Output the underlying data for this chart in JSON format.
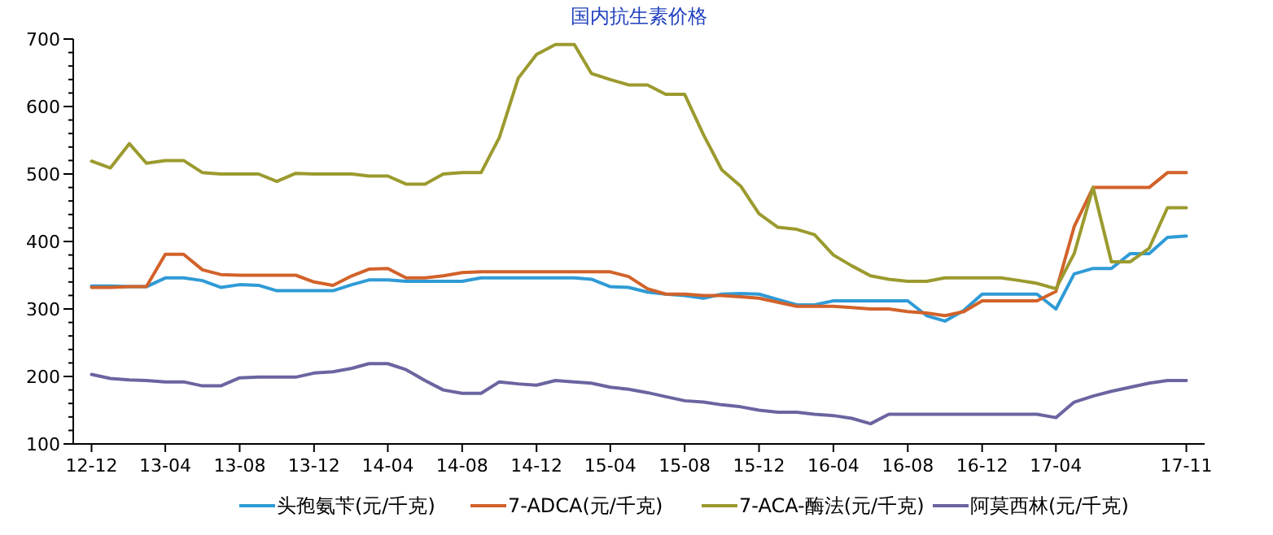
{
  "chart_data": {
    "type": "line",
    "title": "国内抗生素价格",
    "x": [
      "2012-12",
      "2013-01",
      "2013-02",
      "2013-03",
      "2013-04",
      "2013-05",
      "2013-06",
      "2013-07",
      "2013-08",
      "2013-09",
      "2013-10",
      "2013-11",
      "2013-12",
      "2014-01",
      "2014-02",
      "2014-03",
      "2014-04",
      "2014-05",
      "2014-06",
      "2014-07",
      "2014-08",
      "2014-09",
      "2014-10",
      "2014-11",
      "2014-12",
      "2015-01",
      "2015-02",
      "2015-03",
      "2015-04",
      "2015-05",
      "2015-06",
      "2015-07",
      "2015-08",
      "2015-09",
      "2015-10",
      "2015-11",
      "2015-12",
      "2016-01",
      "2016-02",
      "2016-03",
      "2016-04",
      "2016-05",
      "2016-06",
      "2016-07",
      "2016-08",
      "2016-09",
      "2016-10",
      "2016-11",
      "2016-12",
      "2017-01",
      "2017-02",
      "2017-03",
      "2017-04",
      "2017-05",
      "2017-06",
      "2017-07",
      "2017-08",
      "2017-09",
      "2017-10",
      "2017-11"
    ],
    "series": [
      {
        "name": "头孢氨苄(元/千克)",
        "color": "#2f9bd6",
        "values": [
          334,
          334,
          333,
          333,
          346,
          346,
          342,
          332,
          336,
          335,
          327,
          327,
          327,
          327,
          336,
          343,
          343,
          341,
          341,
          341,
          341,
          346,
          346,
          346,
          346,
          346,
          346,
          344,
          333,
          332,
          325,
          322,
          320,
          316,
          322,
          323,
          322,
          314,
          306,
          306,
          312,
          312,
          312,
          312,
          312,
          290,
          282,
          298,
          322,
          322,
          322,
          322,
          300,
          352,
          360,
          360,
          382,
          382,
          406,
          408
        ]
      },
      {
        "name": "7-ADCA(元/千克)",
        "color": "#d2622a",
        "values": [
          332,
          332,
          333,
          333,
          381,
          381,
          358,
          351,
          350,
          350,
          350,
          350,
          340,
          335,
          349,
          359,
          360,
          346,
          346,
          349,
          354,
          355,
          355,
          355,
          355,
          355,
          355,
          355,
          355,
          348,
          330,
          322,
          322,
          320,
          320,
          318,
          316,
          310,
          304,
          304,
          304,
          302,
          300,
          300,
          296,
          294,
          290,
          296,
          312,
          312,
          312,
          312,
          326,
          422,
          480,
          480,
          480,
          480,
          502,
          502
        ]
      },
      {
        "name": "7-ACA-酶法(元/千克)",
        "color": "#9b9a2e",
        "values": [
          519,
          509,
          545,
          516,
          520,
          520,
          502,
          500,
          500,
          500,
          489,
          501,
          500,
          500,
          500,
          497,
          497,
          485,
          485,
          500,
          502,
          502,
          554,
          642,
          677,
          692,
          692,
          649,
          640,
          632,
          632,
          618,
          618,
          558,
          506,
          482,
          441,
          421,
          418,
          410,
          380,
          364,
          349,
          344,
          341,
          341,
          346,
          346,
          346,
          346,
          342,
          338,
          330,
          382,
          480,
          370,
          370,
          390,
          450,
          450
        ]
      },
      {
        "name": "阿莫西林(元/千克)",
        "color": "#6a64a0",
        "values": [
          203,
          197,
          195,
          194,
          192,
          192,
          186,
          186,
          198,
          199,
          199,
          199,
          205,
          207,
          212,
          219,
          219,
          210,
          194,
          180,
          175,
          175,
          192,
          189,
          187,
          194,
          192,
          190,
          184,
          181,
          176,
          170,
          164,
          162,
          158,
          155,
          150,
          147,
          147,
          144,
          142,
          138,
          130,
          144,
          144,
          144,
          144,
          144,
          144,
          144,
          144,
          144,
          139,
          162,
          171,
          178,
          184,
          190,
          194,
          194
        ]
      }
    ],
    "xlim": [
      "2012-11",
      "2017-12"
    ],
    "xticks": [
      {
        "value": "2012-12",
        "label": "12-12"
      },
      {
        "value": "2013-04",
        "label": "13-04"
      },
      {
        "value": "2013-08",
        "label": "13-08"
      },
      {
        "value": "2013-12",
        "label": "13-12"
      },
      {
        "value": "2014-04",
        "label": "14-04"
      },
      {
        "value": "2014-08",
        "label": "14-08"
      },
      {
        "value": "2014-12",
        "label": "14-12"
      },
      {
        "value": "2015-04",
        "label": "15-04"
      },
      {
        "value": "2015-08",
        "label": "15-08"
      },
      {
        "value": "2015-12",
        "label": "15-12"
      },
      {
        "value": "2016-04",
        "label": "16-04"
      },
      {
        "value": "2016-08",
        "label": "16-08"
      },
      {
        "value": "2016-12",
        "label": "16-12"
      },
      {
        "value": "2017-04",
        "label": "17-04"
      },
      {
        "value": "2017-11",
        "label": "17-11"
      }
    ],
    "ylim": [
      100,
      700
    ],
    "yticks": [
      100,
      {
        "value": 120,
        "label": null
      },
      {
        "value": 140,
        "label": null
      },
      {
        "value": 160,
        "label": null
      },
      {
        "value": 180,
        "label": null
      },
      200,
      {
        "value": 220,
        "label": null
      },
      {
        "value": 240,
        "label": null
      },
      {
        "value": 260,
        "label": null
      },
      {
        "value": 280,
        "label": null
      },
      300,
      {
        "value": 320,
        "label": null
      },
      {
        "value": 340,
        "label": null
      },
      {
        "value": 360,
        "label": null
      },
      {
        "value": 380,
        "label": null
      },
      400,
      {
        "value": 420,
        "label": null
      },
      {
        "value": 440,
        "label": null
      },
      {
        "value": 460,
        "label": null
      },
      {
        "value": 480,
        "label": null
      },
      500,
      {
        "value": 520,
        "label": null
      },
      {
        "value": 540,
        "label": null
      },
      {
        "value": 560,
        "label": null
      },
      {
        "value": 580,
        "label": null
      },
      600,
      {
        "value": 620,
        "label": null
      },
      {
        "value": 640,
        "label": null
      },
      {
        "value": 660,
        "label": null
      },
      {
        "value": 680,
        "label": null
      },
      700
    ],
    "grid": false,
    "legend": "bottom",
    "marker": "none",
    "line_style": "solid"
  }
}
